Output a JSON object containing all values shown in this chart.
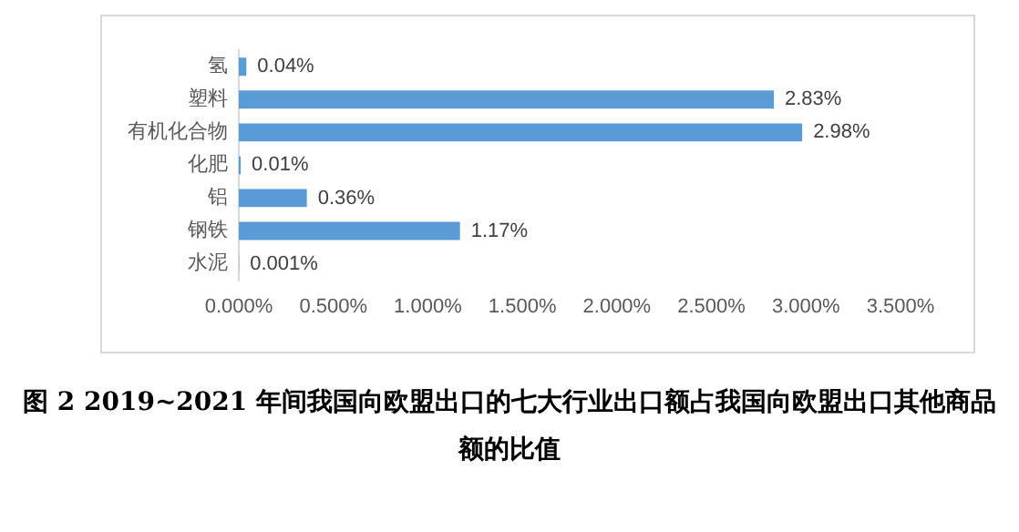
{
  "chart_data": {
    "type": "bar",
    "orientation": "horizontal",
    "categories": [
      "氢",
      "塑料",
      "有机化合物",
      "化肥",
      "铝",
      "钢铁",
      "水泥"
    ],
    "values": [
      0.04,
      2.83,
      2.98,
      0.01,
      0.36,
      1.17,
      0.001
    ],
    "value_labels": [
      "0.04%",
      "2.83%",
      "2.98%",
      "0.01%",
      "0.36%",
      "1.17%",
      "0.001%"
    ],
    "color": "#5b9bd5",
    "xlim": [
      0,
      3.5
    ],
    "xticks": [
      {
        "value": 0,
        "label": "0.000%"
      },
      {
        "value": 0.5,
        "label": "0.500%"
      },
      {
        "value": 1,
        "label": "1.000%"
      },
      {
        "value": 1.5,
        "label": "1.500%"
      },
      {
        "value": 2,
        "label": "2.000%"
      },
      {
        "value": 2.5,
        "label": "2.500%"
      },
      {
        "value": 3,
        "label": "3.000%"
      },
      {
        "value": 3.5,
        "label": "3.500%"
      }
    ],
    "grid": false,
    "legend": false,
    "annotations": [
      "图 2 2019~2021 年间我国向欧盟出口的七大行业出口额占我国向欧盟出口其他商品额的比值"
    ]
  }
}
